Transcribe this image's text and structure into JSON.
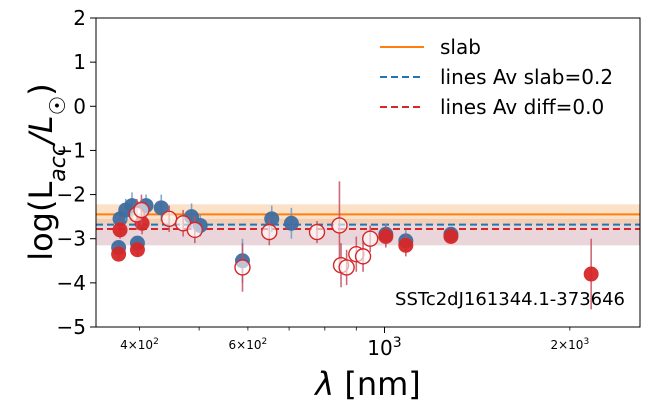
{
  "chart_data": {
    "type": "scatter",
    "title": "",
    "xlabel": "λ [nm]",
    "ylabel": "log(L_acc/L_☉)",
    "x_scale": "log",
    "xlim": [
      340,
      2600
    ],
    "ylim": [
      -5,
      2
    ],
    "y_ticks": [
      {
        "value": 2,
        "label": "2"
      },
      {
        "value": 1,
        "label": "1"
      },
      {
        "value": 0,
        "label": "0"
      },
      {
        "value": -1,
        "label": "−1"
      },
      {
        "value": -2,
        "label": "−2"
      },
      {
        "value": -3,
        "label": "−3"
      },
      {
        "value": -4,
        "label": "−4"
      },
      {
        "value": -5,
        "label": "−5"
      }
    ],
    "x_ticks_major": [
      {
        "value": 1000,
        "base": "10",
        "exp": "3"
      }
    ],
    "x_ticks_minor": [
      {
        "value": 400,
        "mant": "4",
        "base": "10",
        "exp": "2"
      },
      {
        "value": 600,
        "mant": "6",
        "base": "10",
        "exp": "2"
      },
      {
        "value": 2000,
        "mant": "2",
        "base": "10",
        "exp": "3"
      }
    ],
    "legend_position": "top-right",
    "legend": [
      {
        "label": "slab",
        "color": "#ff7f0e",
        "style": "solid"
      },
      {
        "label": "lines Av slab=0.2",
        "color": "#1f77b4",
        "style": "dashed"
      },
      {
        "label": "lines Av diff=0.0",
        "color": "#d62728",
        "style": "dashed"
      }
    ],
    "annotation": "SSTc2dJ161344.1-373646",
    "slab_level": -2.45,
    "slab_band": [
      -2.22,
      -2.68
    ],
    "lines_av_slab_level": -2.68,
    "lines_av_diff_level": -2.78,
    "lines_av_diff_band": [
      -2.55,
      -3.15
    ],
    "colors": {
      "slab": "#ff7f0e",
      "slab_band": "#f8c99a",
      "diff_band": "#d8b4bc",
      "blue_points": "#3f6d9e",
      "red_points": "#d62728",
      "blue_err": "#6a9cc9",
      "red_err": "#c45060"
    },
    "series": [
      {
        "name": "lines Av slab=0.2",
        "marker": "filled-circle",
        "color": "#3f6d9e",
        "points": [
          {
            "x": 370,
            "y": -3.2,
            "err": 0.15
          },
          {
            "x": 372,
            "y": -2.55,
            "err": 0.2
          },
          {
            "x": 380,
            "y": -2.35,
            "err": 0.25
          },
          {
            "x": 389,
            "y": -2.25,
            "err": 0.3
          },
          {
            "x": 397,
            "y": -3.1,
            "err": 0.15
          },
          {
            "x": 410,
            "y": -2.25,
            "err": 0.25
          },
          {
            "x": 434,
            "y": -2.3,
            "err": 0.3
          },
          {
            "x": 486,
            "y": -2.5,
            "err": 0.3
          },
          {
            "x": 502,
            "y": -2.7,
            "err": 0.25
          },
          {
            "x": 588,
            "y": -3.5,
            "err": 0.5
          },
          {
            "x": 656,
            "y": -2.55,
            "err": 0.3
          },
          {
            "x": 706,
            "y": -2.65,
            "err": 0.35
          },
          {
            "x": 1005,
            "y": -2.9,
            "err": 0.25
          },
          {
            "x": 1083,
            "y": -3.05,
            "err": 0.25
          },
          {
            "x": 1282,
            "y": -2.9,
            "err": 0.15
          }
        ]
      },
      {
        "name": "lines Av diff=0.0",
        "marker": "filled-circle",
        "color": "#d62728",
        "points": [
          {
            "x": 370,
            "y": -3.35,
            "err": 0.15
          },
          {
            "x": 372,
            "y": -2.8,
            "err": 0.2
          },
          {
            "x": 397,
            "y": -3.25,
            "err": 0.15
          },
          {
            "x": 404,
            "y": -2.65,
            "err": 0.25
          },
          {
            "x": 1005,
            "y": -2.95,
            "err": 0.25
          },
          {
            "x": 1083,
            "y": -3.15,
            "err": 0.25
          },
          {
            "x": 1282,
            "y": -2.95,
            "err": 0.15
          },
          {
            "x": 2166,
            "y": -3.8,
            "err": 0.8
          }
        ]
      },
      {
        "name": "",
        "marker": "open-circle",
        "color": "#d62728",
        "points": [
          {
            "x": 396,
            "y": -2.45,
            "err": 0.35
          },
          {
            "x": 403,
            "y": -2.35,
            "err": 0.35
          },
          {
            "x": 447,
            "y": -2.55,
            "err": 0.3
          },
          {
            "x": 471,
            "y": -2.65,
            "err": 0.3
          },
          {
            "x": 492,
            "y": -2.8,
            "err": 0.3
          },
          {
            "x": 588,
            "y": -3.65,
            "err": 0.55
          },
          {
            "x": 650,
            "y": -2.85,
            "err": 0.3
          },
          {
            "x": 777,
            "y": -2.85,
            "err": 0.25
          },
          {
            "x": 845,
            "y": -2.7,
            "err": 1.0
          },
          {
            "x": 850,
            "y": -3.6,
            "err": 0.5
          },
          {
            "x": 868,
            "y": -3.65,
            "err": 0.4
          },
          {
            "x": 900,
            "y": -3.35,
            "err": 0.4
          },
          {
            "x": 923,
            "y": -3.4,
            "err": 0.35
          },
          {
            "x": 948,
            "y": -3.0,
            "err": 0.3
          }
        ]
      }
    ]
  }
}
